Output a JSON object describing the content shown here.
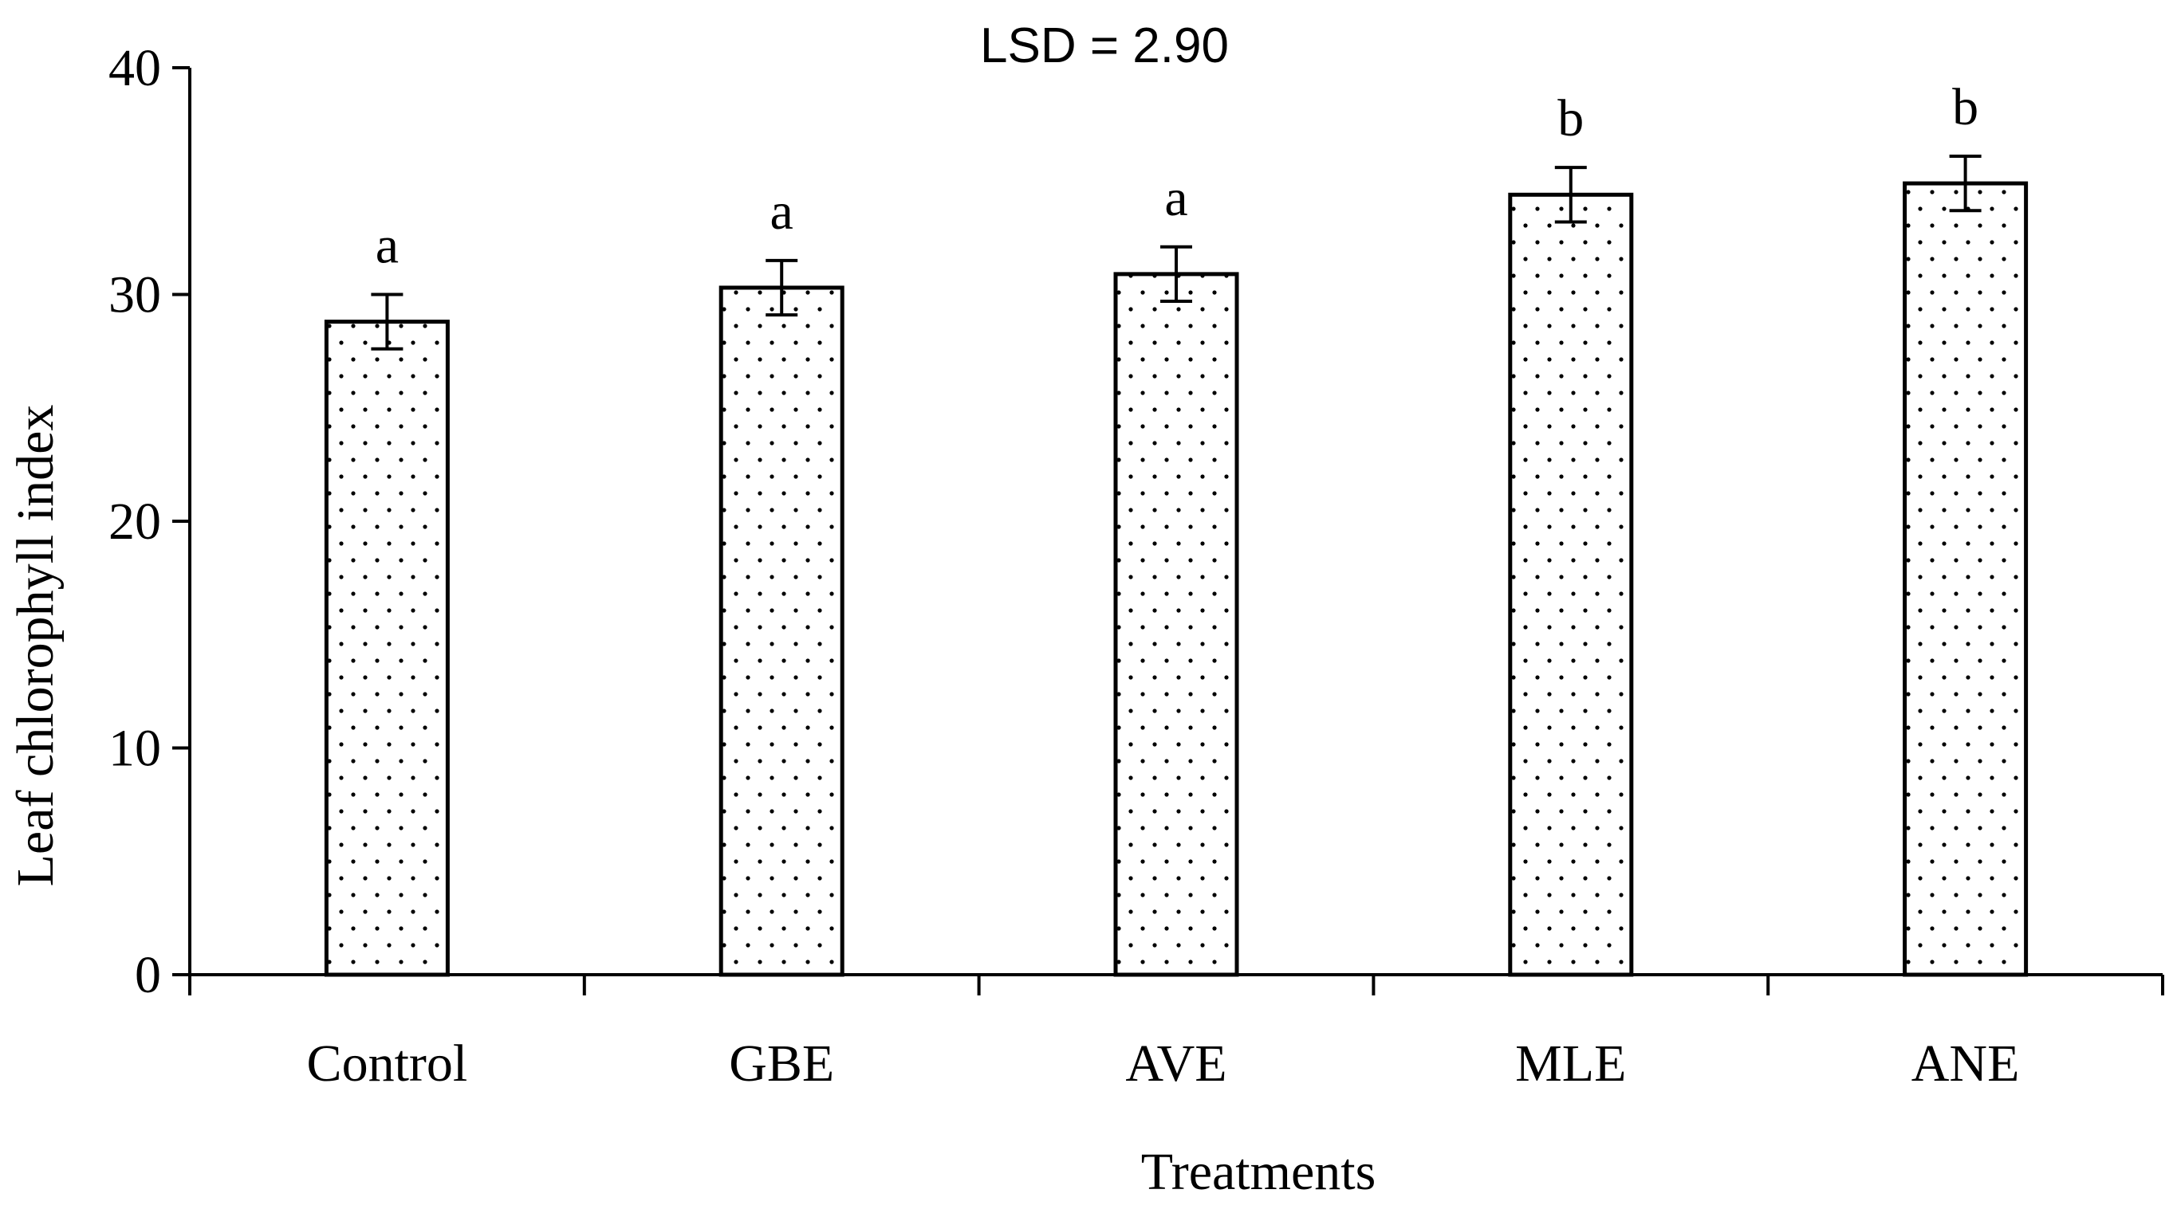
{
  "chart_data": {
    "type": "bar",
    "title": "",
    "annotation": "LSD = 2.90",
    "xlabel": "Treatments",
    "ylabel": "Leaf chlorophyll index",
    "ylim": [
      0,
      40
    ],
    "yticks": [
      0,
      10,
      20,
      30,
      40
    ],
    "ytick_labels": [
      "0",
      "10",
      "20",
      "30",
      "40"
    ],
    "grid": false,
    "legend": "none",
    "fill_pattern": "dotted",
    "categories": [
      "Control",
      "GBE",
      "AVE",
      "MLE",
      "ANE"
    ],
    "values": [
      28.8,
      30.3,
      30.9,
      34.4,
      34.9
    ],
    "errors": [
      1.2,
      1.2,
      1.2,
      1.2,
      1.2
    ],
    "significance_letters": [
      "a",
      "a",
      "a",
      "b",
      "b"
    ]
  }
}
